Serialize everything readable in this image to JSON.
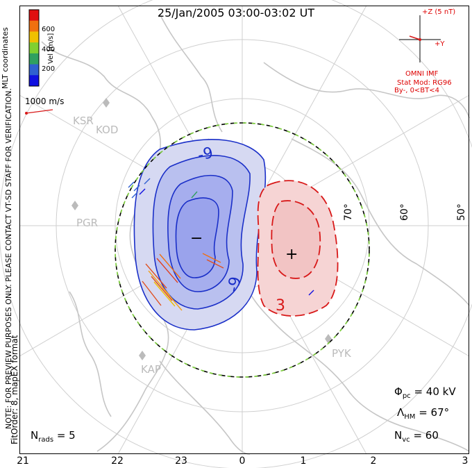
{
  "title": "25/Jan/2005 03:00-03:02 UT",
  "side_label_preview": "NOTE: FOR PREVIEW PURPOSES ONLY. PLEASE CONTACT VT-SD STAFF FOR VERIFICATION.",
  "side_label_coords": "MLT coordinates",
  "side_label_fit": "FitOrder: 8, mapEX format",
  "colorbar": {
    "label": "Vel [m/s]",
    "ticks": [
      "600",
      "400",
      "200"
    ],
    "colors": [
      "#e01010",
      "#f07010",
      "#f0c000",
      "#80d030",
      "#30a060",
      "#3060d0",
      "#1010e0"
    ]
  },
  "scale_vector_label": "1000 m/s",
  "imf": {
    "z_label": "+Z (5 nT)",
    "y_label": "+Y",
    "source": "OMNI IMF",
    "model": "Stat Mod: RG96",
    "condition": "By-, 0<BT<4"
  },
  "stations": [
    "KSR",
    "KOD",
    "PGR",
    "KAP",
    "PYK"
  ],
  "latitude_labels": [
    "70°",
    "60°",
    "50°"
  ],
  "contours": {
    "negative_label": "-9",
    "positive_label": "3",
    "min_marker": "−",
    "max_marker": "+"
  },
  "stats": {
    "phi_symbol": "Φ",
    "phi_sub": "pc",
    "phi_value": "= 40 kV",
    "lambda_symbol": "Λ",
    "lambda_sub": "HM",
    "lambda_value": "= 67°",
    "nvc_symbol": "N",
    "nvc_sub": "vc",
    "nvc_value": "= 60",
    "nrads_symbol": "N",
    "nrads_sub": "rads",
    "nrads_value": "= 5"
  },
  "mlt_ticks": [
    "21",
    "22",
    "23",
    "0",
    "1",
    "2",
    "3"
  ],
  "colors": {
    "negative_fill": "#b8bff0",
    "negative_line": "#1a2fc8",
    "positive_fill": "#f4c6c6",
    "positive_line": "#d81818",
    "boundary_dash": "#7ccf3a",
    "grid": "#c8c8c8",
    "coast": "#c8c8c8"
  }
}
